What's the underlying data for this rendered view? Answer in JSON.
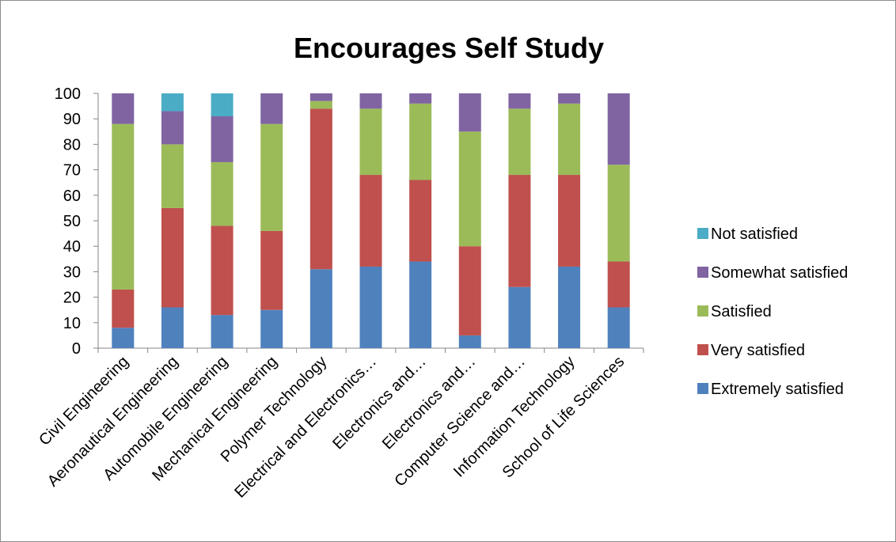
{
  "chart_data": {
    "type": "bar",
    "stacked": true,
    "title": "Encourages Self Study",
    "xlabel": "",
    "ylabel": "",
    "ylim": [
      0,
      100
    ],
    "yticks": [
      0,
      10,
      20,
      30,
      40,
      50,
      60,
      70,
      80,
      90,
      100
    ],
    "grid": false,
    "legend_position": "right",
    "categories": [
      "Civil Engineering",
      "Aeronautical Engineering",
      "Automobile Engineering",
      "Mechanical Engineering",
      "Polymer Technology",
      "Electrical and Electronics…",
      "Electronics and…",
      "Electronics and…",
      "Computer Science and…",
      "Information Technology",
      "School of Life Sciences"
    ],
    "series": [
      {
        "name": "Extremely satisfied",
        "color": "#4f81bd",
        "values": [
          8,
          16,
          13,
          15,
          31,
          32,
          34,
          5,
          24,
          32,
          16
        ]
      },
      {
        "name": "Very satisfied",
        "color": "#c0504d",
        "values": [
          15,
          39,
          35,
          31,
          63,
          36,
          32,
          35,
          44,
          36,
          18
        ]
      },
      {
        "name": "Satisfied",
        "color": "#9bbb59",
        "values": [
          65,
          25,
          25,
          42,
          3,
          26,
          30,
          45,
          26,
          28,
          38
        ]
      },
      {
        "name": "Somewhat satisfied",
        "color": "#8064a2",
        "values": [
          12,
          13,
          18,
          12,
          3,
          6,
          4,
          15,
          6,
          4,
          28
        ]
      },
      {
        "name": "Not satisfied",
        "color": "#4bacc6",
        "values": [
          0,
          7,
          9,
          0,
          0,
          0,
          0,
          0,
          0,
          0,
          0
        ]
      }
    ]
  }
}
